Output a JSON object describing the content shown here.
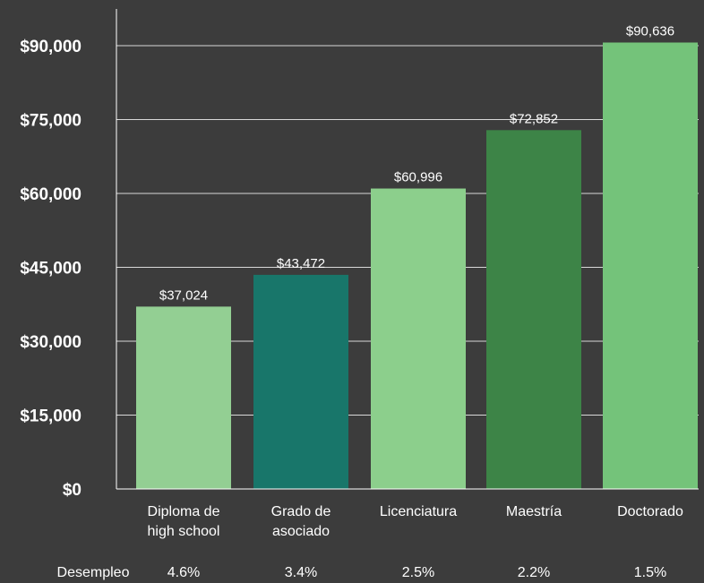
{
  "chart_data": {
    "type": "bar",
    "categories": [
      [
        "Diploma de",
        "high school"
      ],
      [
        "Grado de",
        "asociado"
      ],
      [
        "Licenciatura"
      ],
      [
        "Maestría"
      ],
      [
        "Doctorado"
      ]
    ],
    "values": [
      37024,
      43472,
      60996,
      72852,
      90636
    ],
    "value_labels": [
      "$37,024",
      "$43,472",
      "$60,996",
      "$72,852",
      "$90,636"
    ],
    "bar_colors": [
      "#93cf93",
      "#18766a",
      "#8ccf8c",
      "#3d8447",
      "#74c37a"
    ],
    "ylim": [
      0,
      90000
    ],
    "yticks": [
      0,
      15000,
      30000,
      45000,
      60000,
      75000,
      90000
    ],
    "ytick_labels": [
      "$0",
      "$15,000",
      "$30,000",
      "$45,000",
      "$60,000",
      "$75,000",
      "$90,000"
    ],
    "grid": true,
    "row_label": "Desempleo",
    "row_values": [
      "4.6%",
      "3.4%",
      "2.5%",
      "2.2%",
      "1.5%"
    ]
  },
  "colors": {
    "background": "#3c3c3c",
    "grid": "#d9d9d9",
    "axis": "#ffffff",
    "text": "#ffffff"
  }
}
